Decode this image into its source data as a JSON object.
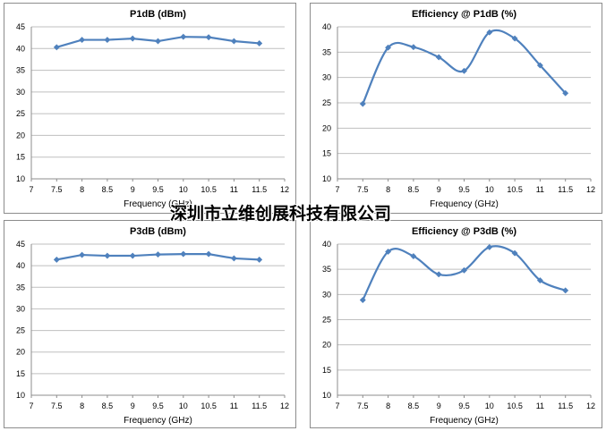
{
  "watermark": "深圳市立维创展科技有限公司",
  "series_color": "#4f81bd",
  "chart_data": [
    {
      "type": "line",
      "title": "P1dB (dBm)",
      "xlabel": "Frequency (GHz)",
      "ylabel": "",
      "xlim": [
        7,
        12
      ],
      "ylim": [
        10,
        45
      ],
      "xticks": [
        "7",
        "7.5",
        "8",
        "8.5",
        "9",
        "9.5",
        "10",
        "10.5",
        "11",
        "11.5",
        "12"
      ],
      "yticks": [
        "10",
        "15",
        "20",
        "25",
        "30",
        "35",
        "40",
        "45"
      ],
      "smooth": false,
      "x": [
        7.5,
        8,
        8.5,
        9,
        9.5,
        10,
        10.5,
        11,
        11.5
      ],
      "values": [
        40.3,
        42.0,
        42.0,
        42.3,
        41.7,
        42.7,
        42.6,
        41.7,
        41.2
      ]
    },
    {
      "type": "line",
      "title": "Efficiency @ P1dB (%)",
      "xlabel": "Frequency (GHz)",
      "ylabel": "",
      "xlim": [
        7,
        12
      ],
      "ylim": [
        10,
        40
      ],
      "xticks": [
        "7",
        "7.5",
        "8",
        "8.5",
        "9",
        "9.5",
        "10",
        "10.5",
        "11",
        "11.5",
        "12"
      ],
      "yticks": [
        "10",
        "15",
        "20",
        "25",
        "30",
        "35",
        "40"
      ],
      "smooth": true,
      "x": [
        7.5,
        8,
        8.5,
        9,
        9.5,
        10,
        10.5,
        11,
        11.5
      ],
      "values": [
        24.8,
        35.9,
        36.0,
        34.0,
        31.3,
        38.9,
        37.7,
        32.4,
        26.9
      ]
    },
    {
      "type": "line",
      "title": "P3dB (dBm)",
      "xlabel": "Frequency (GHz)",
      "ylabel": "",
      "xlim": [
        7,
        12
      ],
      "ylim": [
        10,
        45
      ],
      "xticks": [
        "7",
        "7.5",
        "8",
        "8.5",
        "9",
        "9.5",
        "10",
        "10.5",
        "11",
        "11.5",
        "12"
      ],
      "yticks": [
        "10",
        "15",
        "20",
        "25",
        "30",
        "35",
        "40",
        "45"
      ],
      "smooth": false,
      "x": [
        7.5,
        8,
        8.5,
        9,
        9.5,
        10,
        10.5,
        11,
        11.5
      ],
      "values": [
        41.4,
        42.5,
        42.3,
        42.3,
        42.6,
        42.7,
        42.7,
        41.7,
        41.4
      ]
    },
    {
      "type": "line",
      "title": "Efficiency @ P3dB (%)",
      "xlabel": "Frequency (GHz)",
      "ylabel": "",
      "xlim": [
        7,
        12
      ],
      "ylim": [
        10,
        40
      ],
      "xticks": [
        "7",
        "7.5",
        "8",
        "8.5",
        "9",
        "9.5",
        "10",
        "10.5",
        "11",
        "11.5",
        "12"
      ],
      "yticks": [
        "10",
        "15",
        "20",
        "25",
        "30",
        "35",
        "40"
      ],
      "smooth": true,
      "x": [
        7.5,
        8,
        8.5,
        9,
        9.5,
        10,
        10.5,
        11,
        11.5
      ],
      "values": [
        28.9,
        38.5,
        37.6,
        34.0,
        34.8,
        39.4,
        38.2,
        32.8,
        30.8
      ]
    }
  ]
}
